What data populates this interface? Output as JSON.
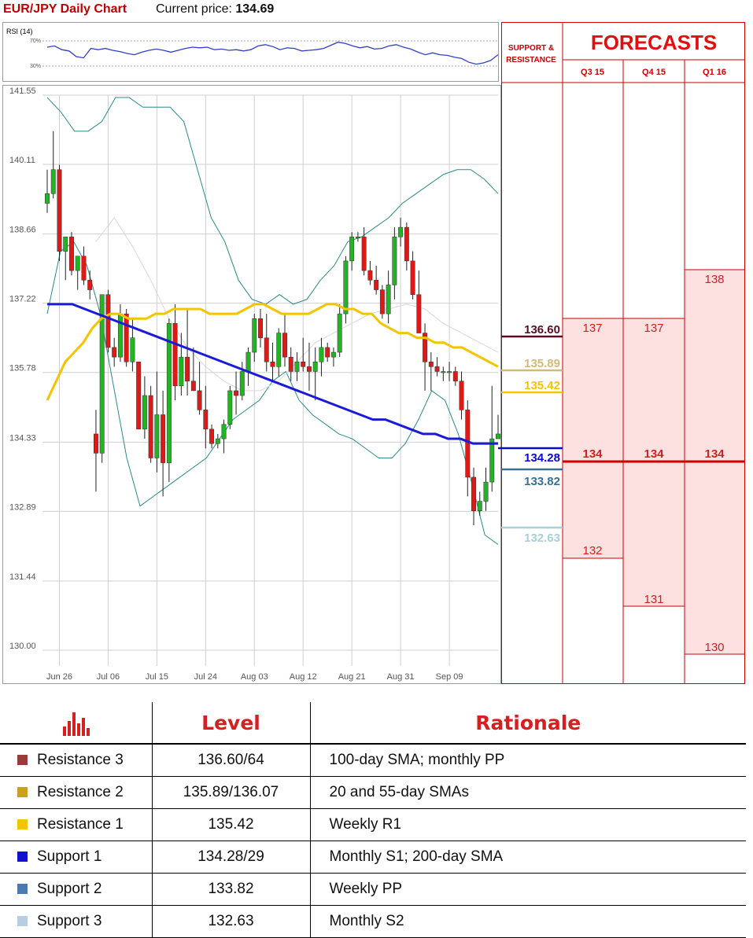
{
  "header": {
    "pair_title": "EUR/JPY Daily Chart",
    "price_label": "Current price:",
    "price_value": "134.69"
  },
  "rsi": {
    "label": "RSI (14)",
    "levels": [
      "70%",
      "30%"
    ],
    "values": [
      60,
      62,
      56,
      54,
      45,
      43,
      58,
      56,
      58,
      55,
      53,
      50,
      48,
      52,
      55,
      57,
      55,
      52,
      55,
      58,
      60,
      59,
      60,
      56,
      57,
      55,
      56,
      54,
      56,
      62,
      64,
      61,
      56,
      59,
      58,
      54,
      55,
      56,
      58,
      63,
      68,
      66,
      62,
      59,
      61,
      57,
      58,
      62,
      64,
      60,
      57,
      52,
      48,
      51,
      48,
      47,
      44,
      42,
      36,
      33,
      35,
      39,
      48
    ],
    "color": "#3040c8"
  },
  "chart_data": {
    "type": "candlestick",
    "title": "EUR/JPY Daily Chart",
    "y_ticks": [
      "141.55",
      "140.11",
      "138.66",
      "137.22",
      "135.78",
      "134.33",
      "132.89",
      "131.44",
      "130.00"
    ],
    "ylim": [
      130.0,
      141.55
    ],
    "x_ticks": [
      "Jun 26",
      "Jul 06",
      "Jul 15",
      "Jul 24",
      "Aug 03",
      "Aug 12",
      "Aug 21",
      "Aug 31",
      "Sep 09"
    ],
    "x_tick_index": [
      2,
      10,
      18,
      26,
      34,
      42,
      50,
      58,
      66
    ],
    "candles": [
      [
        139.3,
        140.0,
        139.1,
        139.5
      ],
      [
        139.5,
        140.8,
        139.4,
        140.0
      ],
      [
        140.0,
        140.1,
        138.1,
        138.3
      ],
      [
        138.3,
        138.6,
        137.7,
        138.6
      ],
      [
        138.6,
        138.7,
        137.8,
        137.9
      ],
      [
        137.9,
        138.2,
        137.5,
        138.2
      ],
      [
        138.2,
        138.4,
        137.6,
        137.7
      ],
      [
        137.7,
        137.9,
        137.3,
        137.5
      ],
      [
        134.5,
        135.0,
        133.3,
        134.1
      ],
      [
        134.1,
        137.4,
        133.9,
        137.4
      ],
      [
        137.4,
        137.5,
        136.2,
        136.3
      ],
      [
        136.3,
        136.5,
        135.9,
        136.1
      ],
      [
        136.1,
        137.2,
        136.0,
        137.0
      ],
      [
        137.0,
        137.1,
        135.9,
        136.0
      ],
      [
        136.0,
        136.9,
        135.8,
        136.5
      ],
      [
        136.0,
        136.0,
        134.6,
        134.6
      ],
      [
        134.6,
        135.7,
        134.4,
        135.3
      ],
      [
        135.3,
        135.5,
        133.9,
        134.0
      ],
      [
        134.0,
        135.8,
        133.7,
        134.9
      ],
      [
        134.9,
        135.4,
        133.2,
        133.9
      ],
      [
        133.9,
        136.9,
        133.5,
        136.8
      ],
      [
        136.8,
        137.2,
        135.2,
        135.5
      ],
      [
        135.5,
        136.6,
        135.3,
        136.1
      ],
      [
        136.1,
        137.1,
        135.3,
        135.6
      ],
      [
        135.6,
        136.3,
        135.4,
        135.4
      ],
      [
        135.4,
        136.0,
        134.9,
        135.0
      ],
      [
        135.0,
        135.5,
        134.2,
        134.6
      ],
      [
        134.6,
        134.7,
        134.2,
        134.3
      ],
      [
        134.3,
        134.5,
        134.2,
        134.4
      ],
      [
        134.4,
        134.8,
        134.1,
        134.7
      ],
      [
        134.7,
        135.5,
        134.6,
        135.4
      ],
      [
        135.4,
        135.8,
        134.9,
        135.3
      ],
      [
        135.3,
        136.0,
        135.2,
        135.8
      ],
      [
        135.8,
        136.3,
        135.5,
        136.2
      ],
      [
        136.2,
        137.0,
        136.0,
        136.9
      ],
      [
        136.9,
        137.1,
        136.3,
        136.5
      ],
      [
        136.5,
        137.0,
        135.8,
        136.0
      ],
      [
        136.0,
        136.4,
        135.6,
        135.9
      ],
      [
        135.9,
        136.7,
        135.7,
        136.6
      ],
      [
        136.6,
        137.0,
        135.9,
        136.1
      ],
      [
        136.1,
        136.3,
        135.6,
        135.8
      ],
      [
        135.8,
        136.2,
        135.6,
        136.0
      ],
      [
        136.0,
        136.5,
        135.8,
        135.9
      ],
      [
        135.9,
        136.4,
        135.4,
        135.8
      ],
      [
        135.8,
        136.3,
        135.2,
        136.0
      ],
      [
        136.0,
        136.5,
        135.7,
        136.3
      ],
      [
        136.3,
        136.4,
        136.0,
        136.1
      ],
      [
        136.1,
        136.3,
        135.9,
        136.2
      ],
      [
        136.2,
        137.2,
        136.1,
        137.0
      ],
      [
        137.0,
        138.2,
        136.8,
        138.1
      ],
      [
        138.1,
        138.7,
        137.9,
        138.6
      ],
      [
        138.6,
        138.7,
        138.5,
        138.6
      ],
      [
        138.6,
        138.8,
        137.8,
        137.9
      ],
      [
        137.9,
        138.1,
        137.6,
        137.7
      ],
      [
        137.7,
        138.0,
        137.4,
        137.5
      ],
      [
        137.5,
        137.6,
        136.9,
        137.0
      ],
      [
        137.0,
        137.9,
        136.8,
        137.6
      ],
      [
        137.6,
        138.8,
        137.3,
        138.6
      ],
      [
        138.6,
        139.0,
        138.4,
        138.8
      ],
      [
        138.8,
        138.9,
        137.9,
        138.1
      ],
      [
        138.1,
        138.3,
        137.3,
        137.4
      ],
      [
        137.4,
        137.9,
        136.6,
        136.6
      ],
      [
        136.6,
        136.8,
        135.4,
        136.0
      ],
      [
        136.0,
        136.2,
        135.4,
        135.9
      ],
      [
        135.9,
        136.1,
        135.7,
        135.8
      ],
      [
        135.8,
        135.9,
        135.6,
        135.8
      ],
      [
        135.8,
        136.0,
        135.6,
        135.8
      ],
      [
        135.8,
        135.9,
        135.5,
        135.6
      ],
      [
        135.6,
        135.8,
        134.8,
        135.0
      ],
      [
        135.0,
        135.2,
        133.2,
        133.6
      ],
      [
        133.6,
        133.8,
        132.6,
        132.9
      ],
      [
        132.9,
        133.3,
        132.8,
        133.1
      ],
      [
        133.1,
        133.8,
        132.9,
        133.5
      ],
      [
        133.5,
        135.5,
        133.3,
        134.4
      ],
      [
        134.4,
        134.9,
        134.4,
        134.5
      ]
    ],
    "sma_yellow": [
      135.2,
      135.6,
      136.0,
      136.2,
      136.4,
      136.7,
      136.9,
      137.0,
      137.0,
      136.9,
      136.9,
      136.9,
      137.0,
      137.0,
      137.1,
      137.1,
      137.1,
      137.1,
      137.0,
      137.0,
      137.0,
      137.0,
      137.1,
      137.2,
      137.2,
      137.1,
      137.0,
      137.0,
      137.0,
      137.0,
      137.1,
      137.2,
      137.2,
      137.1,
      137.1,
      137.0,
      137.0,
      136.8,
      136.7,
      136.6,
      136.6,
      136.5,
      136.5,
      136.4,
      136.4,
      136.3,
      136.3,
      136.2,
      136.1,
      136.0,
      135.9
    ],
    "sma_blue": [
      137.2,
      137.2,
      137.2,
      137.1,
      137.0,
      136.9,
      136.8,
      136.7,
      136.6,
      136.5,
      136.4,
      136.3,
      136.2,
      136.1,
      136.0,
      135.9,
      135.8,
      135.7,
      135.6,
      135.5,
      135.4,
      135.3,
      135.2,
      135.1,
      135.0,
      134.9,
      134.8,
      134.8,
      134.7,
      134.6,
      134.5,
      134.5,
      134.4,
      134.4,
      134.3,
      134.3,
      134.3
    ],
    "band_upper": [
      141.5,
      141.2,
      140.8,
      140.8,
      141.0,
      141.5,
      141.5,
      141.3,
      141.3,
      141.3,
      141.0,
      140.0,
      139.0,
      138.5,
      137.7,
      137.3,
      137.2,
      137.4,
      137.2,
      137.3,
      137.7,
      138.0,
      138.5,
      138.6,
      138.8,
      139.0,
      139.3,
      139.5,
      139.7,
      139.9,
      140.0,
      140.0,
      139.8,
      139.5
    ],
    "band_lower": [
      137.0,
      138.3,
      138.5,
      138.0,
      137.0,
      135.5,
      134.0,
      133.0,
      133.2,
      133.4,
      133.6,
      133.8,
      134.0,
      134.4,
      134.8,
      135.0,
      135.2,
      135.6,
      135.8,
      135.2,
      134.9,
      134.7,
      134.5,
      134.4,
      134.2,
      134.0,
      134.0,
      134.3,
      134.8,
      135.4,
      135.2,
      134.5,
      133.5,
      132.4,
      132.2
    ],
    "band_mid": [
      138.5,
      139.0,
      138.4,
      137.7,
      136.9,
      136.3,
      135.9,
      135.6,
      135.4,
      135.4,
      135.6,
      136.0,
      136.4,
      136.6,
      136.8,
      137.0,
      137.1,
      137.2,
      137.1,
      136.8,
      136.6,
      136.4,
      136.2
    ]
  },
  "levels_right": [
    {
      "label": "136.60",
      "color": "#5c0c22"
    },
    {
      "label": "135.89",
      "color": "#d4b878"
    },
    {
      "label": "135.42",
      "color": "#f5c400"
    },
    {
      "label": "134.28",
      "color": "#0a0ad6"
    },
    {
      "label": "133.82",
      "color": "#3a7090"
    },
    {
      "label": "132.63",
      "color": "#a8d0d8"
    }
  ],
  "forecasts": {
    "sr_header": [
      "SUPPORT &",
      "RESISTANCE"
    ],
    "title": "FORECASTS",
    "quarters": [
      "Q3 15",
      "Q4 15",
      "Q1 16"
    ],
    "cols": [
      {
        "high": "137",
        "mid": "134",
        "low": "132"
      },
      {
        "high": "137",
        "mid": "134",
        "low": "131"
      },
      {
        "high": "138",
        "mid": "134",
        "low": "130"
      }
    ]
  },
  "table": {
    "headers": [
      "Level",
      "Rationale"
    ],
    "rows": [
      {
        "name": "Resistance 3",
        "level": "136.60/64",
        "rationale": "100-day SMA; monthly PP",
        "color": "#9a3b3b"
      },
      {
        "name": "Resistance 2",
        "level": "135.89/136.07",
        "rationale": "20 and 55-day SMAs",
        "color": "#c9a020"
      },
      {
        "name": "Resistance 1",
        "level": "135.42",
        "rationale": "Weekly R1",
        "color": "#f5c400"
      },
      {
        "name": "Support 1",
        "level": "134.28/29",
        "rationale": "Monthly S1; 200-day SMA",
        "color": "#1010d0"
      },
      {
        "name": "Support 2",
        "level": "133.82",
        "rationale": "Weekly PP",
        "color": "#4a7ab0"
      },
      {
        "name": "Support 3",
        "level": "132.63",
        "rationale": "Monthly S2",
        "color": "#b8cce4"
      }
    ]
  }
}
